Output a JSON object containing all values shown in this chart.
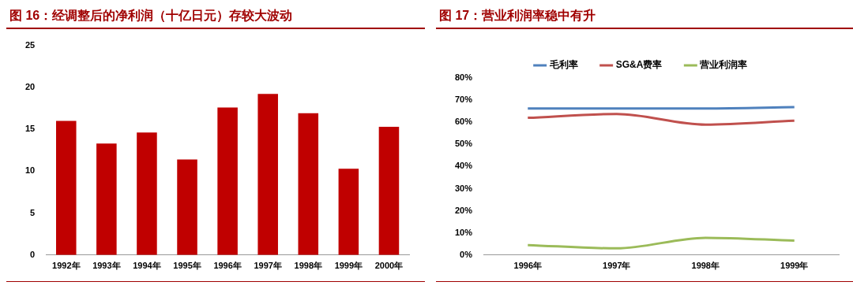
{
  "chart_data": [
    {
      "type": "bar",
      "title": "图 16：经调整后的净利润（十亿日元）存较大波动",
      "categories": [
        "1992年",
        "1993年",
        "1994年",
        "1995年",
        "1996年",
        "1997年",
        "1998年",
        "1999年",
        "2000年"
      ],
      "values": [
        16.0,
        13.3,
        14.6,
        11.4,
        17.6,
        19.2,
        16.9,
        10.3,
        15.3
      ],
      "color": "#c00000",
      "ylim": [
        0,
        25
      ],
      "yticks": [
        0,
        5,
        10,
        15,
        20,
        25
      ],
      "grid": false,
      "legend": false
    },
    {
      "type": "line",
      "title": "图 17：营业利润率稳中有升",
      "categories": [
        "1996年",
        "1997年",
        "1998年",
        "1999年"
      ],
      "series": [
        {
          "name": "毛利率",
          "color": "#4f81bd",
          "values": [
            66.2,
            66.2,
            66.2,
            66.8
          ]
        },
        {
          "name": "SG&A费率",
          "color": "#c0504d",
          "values": [
            62,
            63.7,
            58.9,
            60.7
          ]
        },
        {
          "name": "营业利润率",
          "color": "#9bbb59",
          "values": [
            4.5,
            3,
            7.8,
            6.5
          ]
        }
      ],
      "ylim": [
        0,
        80
      ],
      "yticks": [
        {
          "value": 0,
          "label": "0%"
        },
        {
          "value": 10,
          "label": "10%"
        },
        {
          "value": 20,
          "label": "20%"
        },
        {
          "value": 30,
          "label": "30%"
        },
        {
          "value": 40,
          "label": "40%"
        },
        {
          "value": 50,
          "label": "50%"
        },
        {
          "value": 60,
          "label": "60%"
        },
        {
          "value": 70,
          "label": "70%"
        },
        {
          "value": 80,
          "label": "80%"
        }
      ],
      "grid": false,
      "legend": "top",
      "marker": "none",
      "line_style": "solid"
    }
  ]
}
